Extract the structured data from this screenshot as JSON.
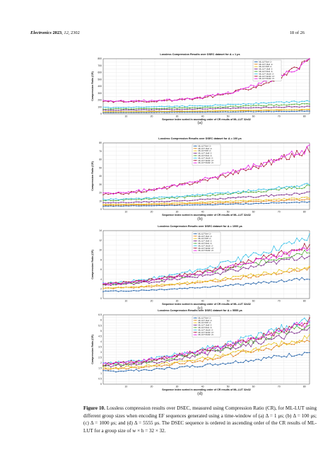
{
  "header": {
    "journal": "Electronics",
    "year": "2023",
    "volume": "12",
    "article": "2302",
    "page": "18 of 26"
  },
  "panels": [
    {
      "id": "a",
      "label": "(a)",
      "title": "Lossless Compression Results over DSEC dataset for  Δ = 1 μs",
      "ylabel": "Compression Ratio (CR)",
      "xlabel": "Sequence index sorted in ascending order of CR results of ML-LUT 32x32",
      "yticks": [
        0,
        100,
        200,
        300,
        400,
        500,
        600,
        700,
        800
      ]
    },
    {
      "id": "b",
      "label": "(b)",
      "title": "Lossless Compression Results over DSEC dataset for  Δ = 100 μs",
      "ylabel": "Compression Ratio (CR)",
      "xlabel": "Sequence index sorted in ascending order of CR results of ML-LUT 32x32",
      "yticks": [
        0,
        10,
        20,
        30,
        40,
        50,
        60,
        70,
        80
      ]
    },
    {
      "id": "c",
      "label": "(c)",
      "title": "Lossless Compression Results over DSEC dataset for  Δ = 1000 μs",
      "ylabel": "Compression Ratio (CR)",
      "xlabel": "Sequence index sorted in ascending order of CR results of ML-LUT 32x32",
      "yticks": [
        0,
        2,
        4,
        6,
        8,
        10,
        12,
        14
      ]
    },
    {
      "id": "d",
      "label": "(d)",
      "title": "Lossless Compression Results over DSEC dataset for  Δ = 5555 μs",
      "ylabel": "Compression Ratio (CR)",
      "xlabel": "Sequence index sorted in ascending order of CR results of ML-LUT 32x32",
      "yticks": [
        0,
        0.5,
        1,
        1.5,
        2,
        2.5,
        3,
        3.5,
        4,
        4.5,
        5,
        5.5,
        6,
        6.5
      ]
    }
  ],
  "xticks": [
    10,
    20,
    30,
    40,
    50,
    60,
    70,
    80
  ],
  "legend": [
    {
      "name": "ML-LUT  8x4 ·2⁵",
      "color": "#1f5fa8"
    },
    {
      "name": "ML-LUT  16x4 ·2⁶",
      "color": "#e0801a"
    },
    {
      "name": "ML-LUT  8x8 ·2⁶",
      "color": "#e8c420"
    },
    {
      "name": "ML-LUT  16x8 ·2⁷",
      "color": "#7a2a8a"
    },
    {
      "name": "ML-LUT  64x4 ·2⁸",
      "color": "#4fa832"
    },
    {
      "name": "ML-LUT  16x16 ·2⁸",
      "color": "#35c0e8"
    },
    {
      "name": "ML-LUT  32x32 ·2¹⁰",
      "color": "#a2142f"
    },
    {
      "name": "ML-LUT  64x32 ·2¹¹",
      "color": "#e61ee6"
    }
  ],
  "chart_data": [
    {
      "type": "line",
      "title": "Lossless Compression Results over DSEC dataset for  Δ = 1 μs",
      "xlabel": "Sequence index sorted in ascending order of CR results of ML-LUT 32x32",
      "ylabel": "Compression Ratio (CR)",
      "xlim": [
        1,
        82
      ],
      "ylim": [
        0,
        800
      ],
      "grid": true,
      "legend_position": "top-right",
      "series": [
        {
          "name": "ML-LUT  8x4 ·2⁵",
          "start": 20,
          "end": 40
        },
        {
          "name": "ML-LUT  16x4 ·2⁶",
          "start": 30,
          "end": 62
        },
        {
          "name": "ML-LUT  8x8 ·2⁶",
          "start": 32,
          "end": 65
        },
        {
          "name": "ML-LUT  16x8 ·2⁷",
          "start": 55,
          "end": 110
        },
        {
          "name": "ML-LUT  64x4 ·2⁸",
          "start": 72,
          "end": 145
        },
        {
          "name": "ML-LUT  16x16 ·2⁸",
          "start": 90,
          "end": 190
        },
        {
          "name": "ML-LUT  32x32 ·2¹⁰",
          "start": 180,
          "end": 770
        },
        {
          "name": "ML-LUT  64x32 ·2¹¹",
          "start": 185,
          "end": 790
        }
      ]
    },
    {
      "type": "line",
      "title": "Lossless Compression Results over DSEC dataset for  Δ = 100 μs",
      "xlabel": "Sequence index sorted in ascending order of CR results of ML-LUT 32x32",
      "ylabel": "Compression Ratio (CR)",
      "xlim": [
        1,
        82
      ],
      "ylim": [
        0,
        80
      ],
      "grid": true,
      "legend_position": "top-left",
      "series": [
        {
          "name": "ML-LUT  8x4 ·2⁵",
          "start": 4,
          "end": 9
        },
        {
          "name": "ML-LUT  16x4 ·2⁶",
          "start": 5,
          "end": 12
        },
        {
          "name": "ML-LUT  8x8 ·2⁶",
          "start": 6,
          "end": 14
        },
        {
          "name": "ML-LUT  16x8 ·2⁷",
          "start": 8,
          "end": 20
        },
        {
          "name": "ML-LUT  64x4 ·2⁸",
          "start": 11,
          "end": 28
        },
        {
          "name": "ML-LUT  16x16 ·2⁸",
          "start": 12,
          "end": 30
        },
        {
          "name": "ML-LUT  32x32 ·2¹⁰",
          "start": 18,
          "end": 72
        },
        {
          "name": "ML-LUT  64x32 ·2¹¹",
          "start": 19,
          "end": 73
        }
      ]
    },
    {
      "type": "line",
      "title": "Lossless Compression Results over DSEC dataset for  Δ = 1000 μs",
      "xlabel": "Sequence index sorted in ascending order of CR results of ML-LUT 32x32",
      "ylabel": "Compression Ratio (CR)",
      "xlim": [
        1,
        82
      ],
      "ylim": [
        0,
        14
      ],
      "grid": true,
      "legend_position": "top-left",
      "series": [
        {
          "name": "ML-LUT  8x4 ·2⁵",
          "start": 1.5,
          "end": 4.2
        },
        {
          "name": "ML-LUT  16x4 ·2⁶",
          "start": 2.1,
          "end": 6.2
        },
        {
          "name": "ML-LUT  8x8 ·2⁶",
          "start": 2.2,
          "end": 6.6
        },
        {
          "name": "ML-LUT  16x8 ·2⁷",
          "start": 2.8,
          "end": 9.0
        },
        {
          "name": "ML-LUT  64x4 ·2⁸",
          "start": 3.0,
          "end": 10.0
        },
        {
          "name": "ML-LUT  16x16 ·2⁸",
          "start": 3.2,
          "end": 12.8
        },
        {
          "name": "ML-LUT  32x32 ·2¹⁰",
          "start": 3.1,
          "end": 11.0
        },
        {
          "name": "ML-LUT  64x32 ·2¹¹",
          "start": 3.0,
          "end": 10.6
        }
      ]
    },
    {
      "type": "line",
      "title": "Lossless Compression Results over DSEC dataset for  Δ = 5555 μs",
      "xlabel": "Sequence index sorted in ascending order of CR results of ML-LUT 32x32",
      "ylabel": "Compression Ratio (CR)",
      "xlim": [
        1,
        82
      ],
      "ylim": [
        0,
        6.5
      ],
      "grid": true,
      "legend_position": "top-left",
      "series": [
        {
          "name": "ML-LUT  8x4 ·2⁵",
          "start": 1.2,
          "end": 3.0
        },
        {
          "name": "ML-LUT  16x4 ·2⁶",
          "start": 1.4,
          "end": 4.2
        },
        {
          "name": "ML-LUT  8x8 ·2⁶",
          "start": 1.5,
          "end": 4.4
        },
        {
          "name": "ML-LUT  16x8 ·2⁷",
          "start": 1.7,
          "end": 5.2
        },
        {
          "name": "ML-LUT  64x4 ·2⁸",
          "start": 1.8,
          "end": 5.6
        },
        {
          "name": "ML-LUT  16x16 ·2⁸",
          "start": 2.0,
          "end": 6.1
        },
        {
          "name": "ML-LUT  32x32 ·2¹⁰",
          "start": 1.9,
          "end": 5.9
        },
        {
          "name": "ML-LUT  64x32 ·2¹¹",
          "start": 1.9,
          "end": 5.8
        }
      ]
    }
  ],
  "caption": {
    "label": "Figure 10.",
    "text": "Lossless compression results over DSEC, measured using Compression Ratio (CR), for ML-LUT using different group sizes when encoding EF sequences generated using a time-window of (a) Δ = 1 μs; (b) Δ = 100 μs; (c) Δ = 1000 μs; and (d) Δ = 5555 μs. The DSEC sequence is ordered in ascending order of the CR results of ML-LUT for a group size of w × h = 32 × 32."
  }
}
